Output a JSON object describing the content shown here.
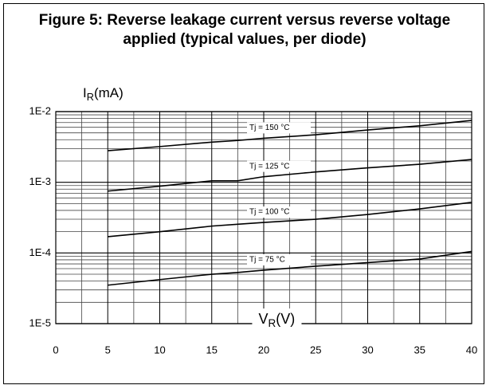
{
  "chart_data": {
    "type": "line",
    "title": "Figure 5: Reverse leakage current versus reverse voltage applied (typical values, per diode)",
    "ylabel": [
      "I",
      "R",
      "(mA)"
    ],
    "xlabel": [
      "V",
      "R",
      "(V)"
    ],
    "x": [
      5,
      10,
      15,
      17.5,
      20,
      25,
      30,
      35,
      40
    ],
    "series": [
      {
        "name": "Tj = 150 °C",
        "color": "#000000",
        "values": [
          0.0028,
          0.0032,
          0.0037,
          0.0039,
          0.0042,
          0.0047,
          0.0055,
          0.0063,
          0.0075
        ]
      },
      {
        "name": "Tj = 125 °C",
        "color": "#000000",
        "values": [
          0.00075,
          0.00088,
          0.00105,
          0.00105,
          0.0012,
          0.0014,
          0.0016,
          0.0018,
          0.0021
        ]
      },
      {
        "name": "Tj = 100 °C",
        "color": "#000000",
        "values": [
          0.00017,
          0.0002,
          0.00024,
          0.000255,
          0.00027,
          0.0003,
          0.00035,
          0.00042,
          0.00052
        ]
      },
      {
        "name": "Tj = 75 °C",
        "color": "#000000",
        "values": [
          3.5e-05,
          4.2e-05,
          5e-05,
          5.3e-05,
          5.7e-05,
          6.5e-05,
          7.3e-05,
          8.2e-05,
          0.000105
        ]
      }
    ],
    "xlim": [
      0,
      40
    ],
    "xticks": [
      0,
      5,
      10,
      15,
      20,
      25,
      30,
      35,
      40
    ],
    "ylim": [
      1e-05,
      0.01
    ],
    "yticks": [
      {
        "value": 1e-05,
        "label": "1E-5"
      },
      {
        "value": 0.0001,
        "label": "1E-4"
      },
      {
        "value": 0.001,
        "label": "1E-3"
      },
      {
        "value": 0.01,
        "label": "1E-2"
      }
    ],
    "log_y": true,
    "grid": true
  }
}
